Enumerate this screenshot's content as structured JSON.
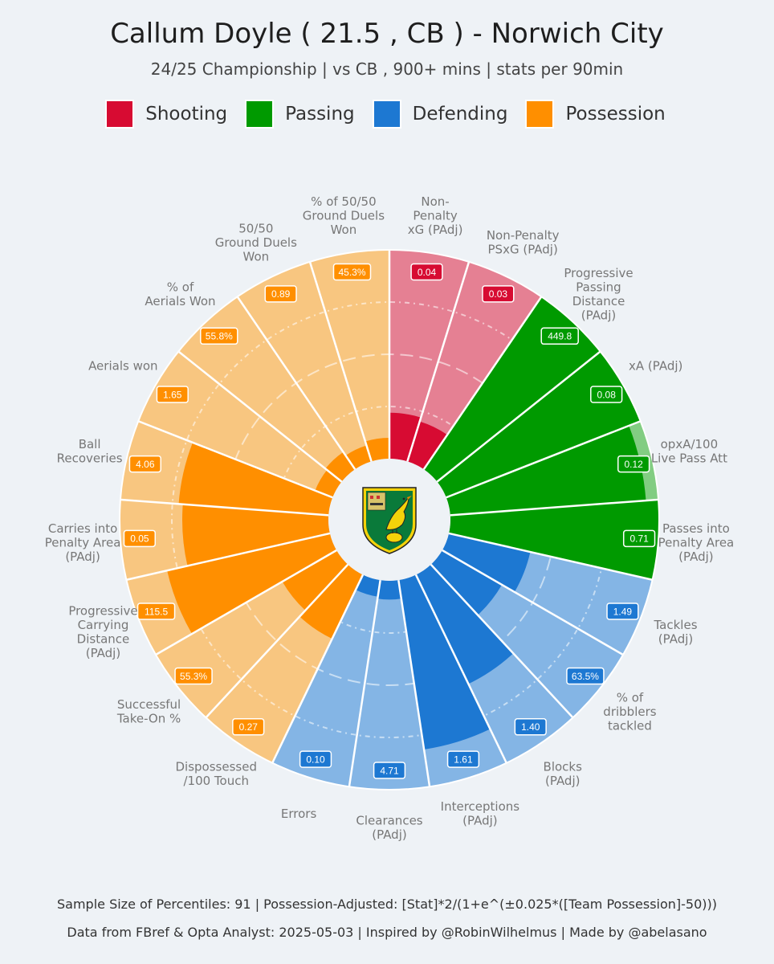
{
  "title": "Callum Doyle  ( 21.5 , CB ) - Norwich City",
  "subtitle": "24/25 Championship | vs CB , 900+ mins | stats per 90min",
  "legend": [
    {
      "label": "Shooting",
      "color": "#d70b32"
    },
    {
      "label": "Passing",
      "color": "#009a00"
    },
    {
      "label": "Defending",
      "color": "#1d78d2"
    },
    {
      "label": "Possession",
      "color": "#ff8f00"
    }
  ],
  "crest": {
    "icon": "norwich-city-crest-icon",
    "colors": [
      "#0a7a3a",
      "#f4d20a"
    ]
  },
  "footer": {
    "line1": "Sample Size of Percentiles:  91  |  Possession-Adjusted: [Stat]*2/(1+e^(±0.025*([Team Possession]-50)))",
    "line2": "Data from FBref & Opta Analyst: 2025-05-03  |  Inspired by @RobinWilhelmus  |  Made by @abelasano"
  },
  "chart_data": {
    "type": "pizza",
    "title": "Callum Doyle  ( 21.5 , CB ) - Norwich City",
    "subtitle": "24/25 Championship | vs CB , 900+ mins | stats per 90min",
    "sample_size": 91,
    "percentile_range": [
      0,
      100
    ],
    "series": [
      {
        "name": "Shooting",
        "color": "#d70b32"
      },
      {
        "name": "Passing",
        "color": "#009a00"
      },
      {
        "name": "Defending",
        "color": "#1d78d2"
      },
      {
        "name": "Possession",
        "color": "#ff8f00"
      }
    ],
    "slices": [
      {
        "metric": "Non-\nPenalty\nxG (PAdj)",
        "group": "Shooting",
        "value_label": "0.04",
        "percentile": 22
      },
      {
        "metric": "Non-Penalty\nPSxG (PAdj)",
        "group": "Shooting",
        "value_label": "0.03",
        "percentile": 20
      },
      {
        "metric": "Progressive\nPassing\nDistance\n(PAdj)",
        "group": "Passing",
        "value_label": "449.8",
        "percentile": 100
      },
      {
        "metric": "xA (PAdj)",
        "group": "Passing",
        "value_label": "0.08",
        "percentile": 100
      },
      {
        "metric": "opxA/100\nLive Pass Att",
        "group": "Passing",
        "value_label": "0.12",
        "percentile": 94
      },
      {
        "metric": "Passes into\nPenalty Area\n(PAdj)",
        "group": "Passing",
        "value_label": "0.71",
        "percentile": 100
      },
      {
        "metric": "Tackles\n(PAdj)",
        "group": "Defending",
        "value_label": "1.49",
        "percentile": 40
      },
      {
        "metric": "% of\ndribblers\ntackled",
        "group": "Defending",
        "value_label": "63.5%",
        "percentile": 33
      },
      {
        "metric": "Blocks\n(PAdj)",
        "group": "Defending",
        "value_label": "1.40",
        "percentile": 58
      },
      {
        "metric": "Interceptions\n(PAdj)",
        "group": "Defending",
        "value_label": "1.61",
        "percentile": 82
      },
      {
        "metric": "Clearances\n(PAdj)",
        "group": "Defending",
        "value_label": "4.71",
        "percentile": 9
      },
      {
        "metric": "Errors",
        "group": "Defending",
        "value_label": "0.10",
        "percentile": 8
      },
      {
        "metric": "Dispossessed\n/100 Touch",
        "group": "Possession",
        "value_label": "0.27",
        "percentile": 34
      },
      {
        "metric": "Successful\nTake-On %",
        "group": "Possession",
        "value_label": "55.3%",
        "percentile": 30
      },
      {
        "metric": "Progressive\nCarrying\nDistance\n(PAdj)",
        "group": "Possession",
        "value_label": "115.5",
        "percentile": 80
      },
      {
        "metric": "Carries into\nPenalty Area\n(PAdj)",
        "group": "Possession",
        "value_label": "0.05",
        "percentile": 70
      },
      {
        "metric": "Ball\nRecoveries",
        "group": "Possession",
        "value_label": "4.06",
        "percentile": 72
      },
      {
        "metric": "Aerials won",
        "group": "Possession",
        "value_label": "1.65",
        "percentile": 9
      },
      {
        "metric": "% of\nAerials Won",
        "group": "Possession",
        "value_label": "55.8%",
        "percentile": 10
      },
      {
        "metric": "50/50\nGround Duels\nWon",
        "group": "Possession",
        "value_label": "0.89",
        "percentile": 8
      },
      {
        "metric": "% of 50/50\nGround Duels\nWon",
        "group": "Possession",
        "value_label": "45.3%",
        "percentile": 10
      }
    ]
  }
}
